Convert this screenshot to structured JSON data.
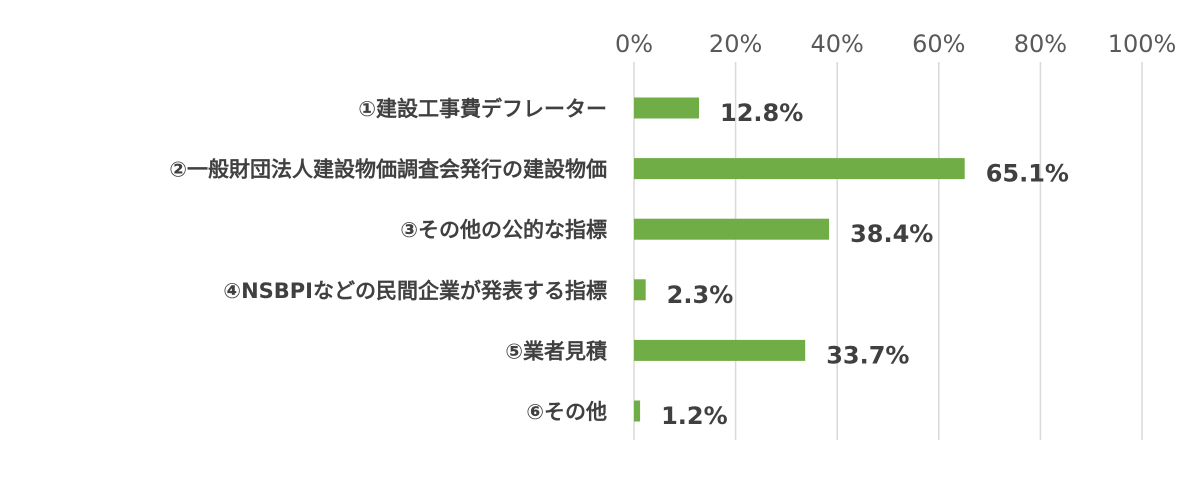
{
  "chart_data": {
    "type": "bar",
    "orientation": "horizontal",
    "categories": [
      "①建設工事費デフレーター",
      "②一般財団法人建設物価調査会発行の建設物価",
      "③その他の公的な指標",
      "④NSBPIなどの民間企業が発表する指標",
      "⑤業者見積",
      "⑥その他"
    ],
    "values": [
      12.8,
      65.1,
      38.4,
      2.3,
      33.7,
      1.2
    ],
    "data_labels": [
      "12.8%",
      "65.1%",
      "38.4%",
      "2.3%",
      "33.7%",
      "1.2%"
    ],
    "x_ticks": [
      "0%",
      "20%",
      "40%",
      "60%",
      "80%",
      "100%"
    ],
    "xlim": [
      0,
      100
    ],
    "x_axis_position": "top",
    "grid": true,
    "bar_color": "#70ad47",
    "grid_color": "#d9d9d9",
    "label_color": "#404040",
    "tick_color": "#595959"
  }
}
